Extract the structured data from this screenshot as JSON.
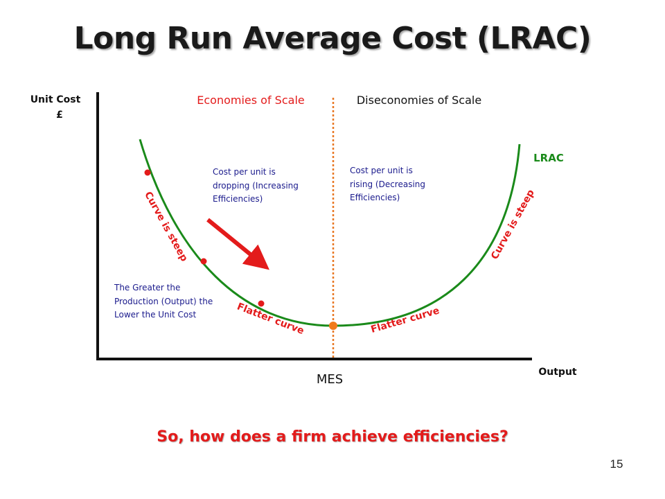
{
  "slide": {
    "title": "Long Run Average Cost (LRAC)",
    "question": "So, how does a firm achieve efficiencies?",
    "page_number": "15"
  },
  "diagram": {
    "y_axis_label": "Unit Cost",
    "y_axis_unit": "£",
    "x_axis_label": "Output",
    "mes_label": "MES",
    "curve_label": "LRAC",
    "economies_label": "Economies of Scale",
    "diseconomies_label": "Diseconomies of Scale",
    "left_note": [
      "Cost per unit is",
      "dropping (Increasing",
      "Efficiencies)"
    ],
    "right_note": [
      "Cost per unit is",
      "rising (Decreasing",
      "Efficiencies)"
    ],
    "lower_note": [
      "The Greater the",
      "Production (Output) the",
      "Lower the Unit Cost"
    ],
    "steep_left": "Curve is steep",
    "steep_right": "Curve is steep",
    "flatter_left": "Flatter curve",
    "flatter_right": "Flatter curve",
    "colors": {
      "curve": "#1a8a1a",
      "red_text": "#e31b1b",
      "blue_text": "#1a1a8c",
      "dashed_line": "#e87722",
      "mes_point": "#f07a1a",
      "axis": "#111111"
    }
  }
}
